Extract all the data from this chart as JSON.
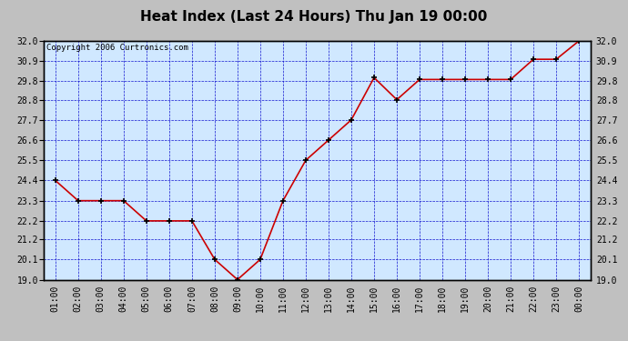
{
  "title": "Heat Index (Last 24 Hours) Thu Jan 19 00:00",
  "copyright": "Copyright 2006 Curtronics.com",
  "x_labels": [
    "01:00",
    "02:00",
    "03:00",
    "04:00",
    "05:00",
    "06:00",
    "07:00",
    "08:00",
    "09:00",
    "10:00",
    "11:00",
    "12:00",
    "13:00",
    "14:00",
    "15:00",
    "16:00",
    "17:00",
    "18:00",
    "19:00",
    "20:00",
    "21:00",
    "22:00",
    "23:00",
    "00:00"
  ],
  "y_values": [
    24.4,
    23.3,
    23.3,
    23.3,
    22.2,
    22.2,
    22.2,
    20.1,
    19.0,
    20.1,
    23.3,
    25.5,
    26.6,
    27.7,
    30.0,
    28.8,
    29.9,
    29.9,
    29.9,
    29.9,
    29.9,
    31.0,
    31.0,
    32.0
  ],
  "line_color": "#cc0000",
  "marker_color": "#000000",
  "fig_bg_color": "#c0c0c0",
  "plot_bg_color": "#d0e8ff",
  "grid_color": "#0000cc",
  "title_color": "#000000",
  "border_color": "#000000",
  "y_min": 19.0,
  "y_max": 32.0,
  "y_ticks": [
    19.0,
    20.1,
    21.2,
    22.2,
    23.3,
    24.4,
    25.5,
    26.6,
    27.7,
    28.8,
    29.8,
    30.9,
    32.0
  ],
  "title_fontsize": 11,
  "copyright_fontsize": 6.5,
  "tick_fontsize": 7
}
